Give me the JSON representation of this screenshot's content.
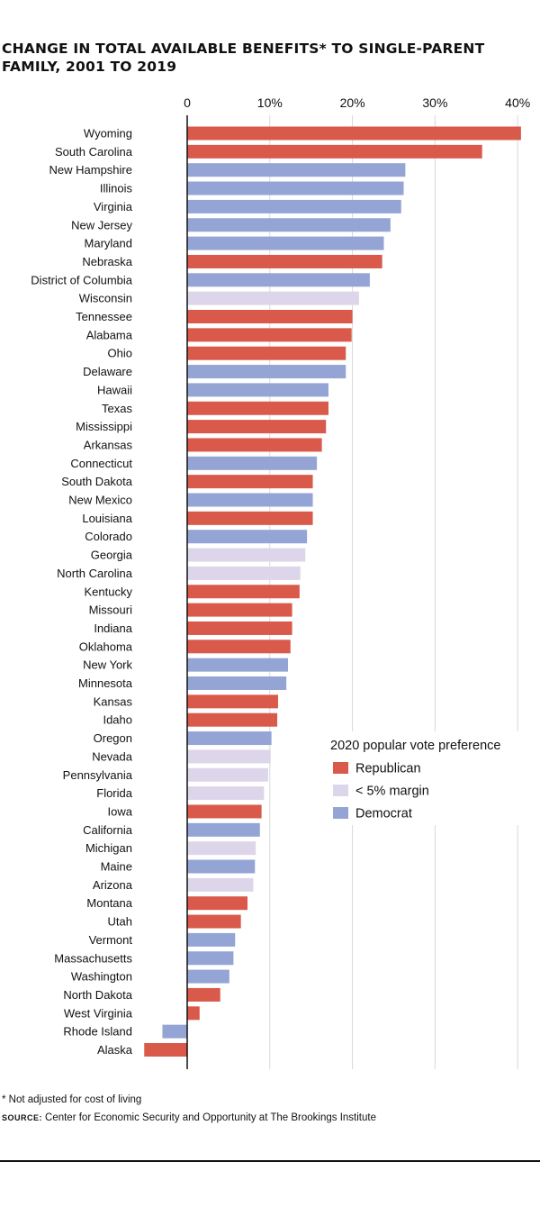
{
  "title": "CHANGE IN TOTAL AVAILABLE BENEFITS* TO SINGLE-PARENT FAMILY, 2001 TO 2019",
  "footnote": "* Not adjusted for cost of living",
  "source": {
    "label": "SOURCE:",
    "text": "Center for Economic Security and Opportunity at The Brookings Institute"
  },
  "colors": {
    "Republican": "#d9594a",
    "< 5% margin": "#ddd6ea",
    "Democrat": "#94a4d4"
  },
  "chart_data": {
    "type": "bar",
    "orientation": "horizontal",
    "title": "CHANGE IN TOTAL AVAILABLE BENEFITS* TO SINGLE-PARENT FAMILY, 2001 TO 2019",
    "xlabel": "",
    "ylabel": "",
    "xlim": [
      -5.5,
      41
    ],
    "x_ticks": [
      0,
      10,
      20,
      30,
      40
    ],
    "x_tick_labels": [
      "0",
      "10%",
      "20%",
      "30%",
      "40%"
    ],
    "grid": "vertical",
    "legend": {
      "title": "2020 popular vote preference",
      "position": "lower-right",
      "entries": [
        "Republican",
        "< 5% margin",
        "Democrat"
      ]
    },
    "categories": [
      "Wyoming",
      "South Carolina",
      "New Hampshire",
      "Illinois",
      "Virginia",
      "New Jersey",
      "Maryland",
      "Nebraska",
      "District of Columbia",
      "Wisconsin",
      "Tennessee",
      "Alabama",
      "Ohio",
      "Delaware",
      "Hawaii",
      "Texas",
      "Mississippi",
      "Arkansas",
      "Connecticut",
      "South Dakota",
      "New Mexico",
      "Louisiana",
      "Colorado",
      "Georgia",
      "North Carolina",
      "Kentucky",
      "Missouri",
      "Indiana",
      "Oklahoma",
      "New York",
      "Minnesota",
      "Kansas",
      "Idaho",
      "Oregon",
      "Nevada",
      "Pennsylvania",
      "Florida",
      "Iowa",
      "California",
      "Michigan",
      "Maine",
      "Arizona",
      "Montana",
      "Utah",
      "Vermont",
      "Massachusetts",
      "Washington",
      "North Dakota",
      "West Virginia",
      "Rhode Island",
      "Alaska"
    ],
    "values": [
      40.4,
      35.7,
      26.4,
      26.2,
      25.9,
      24.6,
      23.8,
      23.6,
      22.1,
      20.8,
      20.0,
      19.9,
      19.2,
      19.2,
      17.1,
      17.1,
      16.8,
      16.3,
      15.7,
      15.2,
      15.2,
      15.2,
      14.5,
      14.3,
      13.7,
      13.6,
      12.7,
      12.7,
      12.5,
      12.2,
      12.0,
      11.0,
      10.9,
      10.2,
      10.1,
      9.8,
      9.3,
      9.0,
      8.8,
      8.3,
      8.2,
      8.0,
      7.3,
      6.5,
      5.8,
      5.6,
      5.1,
      4.0,
      1.5,
      -3.0,
      -5.2
    ],
    "groups": [
      "Republican",
      "Republican",
      "Democrat",
      "Democrat",
      "Democrat",
      "Democrat",
      "Democrat",
      "Republican",
      "Democrat",
      "< 5% margin",
      "Republican",
      "Republican",
      "Republican",
      "Democrat",
      "Democrat",
      "Republican",
      "Republican",
      "Republican",
      "Democrat",
      "Republican",
      "Democrat",
      "Republican",
      "Democrat",
      "< 5% margin",
      "< 5% margin",
      "Republican",
      "Republican",
      "Republican",
      "Republican",
      "Democrat",
      "Democrat",
      "Republican",
      "Republican",
      "Democrat",
      "< 5% margin",
      "< 5% margin",
      "< 5% margin",
      "Republican",
      "Democrat",
      "< 5% margin",
      "Democrat",
      "< 5% margin",
      "Republican",
      "Republican",
      "Democrat",
      "Democrat",
      "Democrat",
      "Republican",
      "Republican",
      "Democrat",
      "Republican"
    ]
  }
}
